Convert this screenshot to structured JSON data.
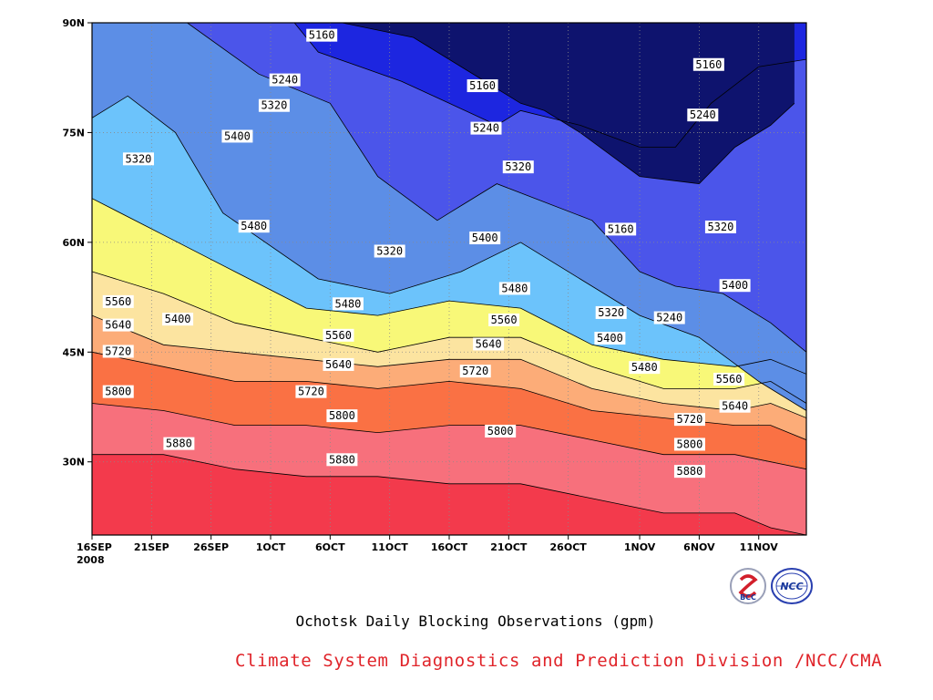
{
  "chart_data": {
    "type": "contour",
    "x_axis": {
      "ticks": [
        "16SEP",
        "21SEP",
        "26SEP",
        "1OCT",
        "6OCT",
        "11OCT",
        "16OCT",
        "21OCT",
        "26OCT",
        "1NOV",
        "6NOV",
        "11NOV"
      ],
      "tick_days": [
        0,
        5,
        10,
        15,
        20,
        25,
        30,
        35,
        40,
        46,
        51,
        56
      ],
      "year_label": "2008",
      "range_days": [
        0,
        60
      ]
    },
    "y_axis": {
      "ticks": [
        "90N",
        "75N",
        "60N",
        "45N",
        "30N"
      ],
      "tick_values": [
        90,
        75,
        60,
        45,
        30
      ],
      "range": [
        20,
        90
      ]
    },
    "grid": "dotted",
    "levels": [
      5160,
      5240,
      5320,
      5400,
      5480,
      5560,
      5640,
      5720,
      5800,
      5880
    ],
    "band_colors": [
      "#0e136e",
      "#1d26e0",
      "#4b55ea",
      "#5c8ee6",
      "#6cc3fb",
      "#f8f878",
      "#fce4a0",
      "#fcac78",
      "#fa7144",
      "#f7707c",
      "#f33a4c"
    ],
    "contours": [
      {
        "level": 5160,
        "points": [
          [
            0,
            90
          ],
          [
            21,
            90
          ],
          [
            27,
            88
          ],
          [
            36,
            79
          ],
          [
            38,
            78
          ],
          [
            41,
            75
          ],
          [
            46,
            69
          ],
          [
            51,
            68
          ],
          [
            54,
            73
          ],
          [
            57,
            76
          ],
          [
            59,
            79
          ]
        ]
      },
      {
        "level": 5240,
        "points": [
          [
            17,
            90
          ],
          [
            19,
            86
          ],
          [
            26,
            82
          ],
          [
            30,
            79
          ],
          [
            34,
            76
          ],
          [
            36,
            78
          ],
          [
            41,
            76
          ],
          [
            46,
            73
          ],
          [
            49,
            73
          ],
          [
            52,
            79
          ],
          [
            56,
            84
          ],
          [
            60,
            85
          ]
        ]
      },
      {
        "level": 5320,
        "points": [
          [
            8,
            90
          ],
          [
            14,
            83
          ],
          [
            20,
            79
          ],
          [
            24,
            69
          ],
          [
            29,
            63
          ],
          [
            30,
            64
          ],
          [
            34,
            68
          ],
          [
            42,
            63
          ],
          [
            46,
            56
          ],
          [
            49,
            54
          ],
          [
            53,
            53
          ],
          [
            57,
            49
          ],
          [
            60,
            45
          ]
        ]
      },
      {
        "level": 5400,
        "points": [
          [
            0,
            77
          ],
          [
            3,
            80
          ],
          [
            7,
            75
          ],
          [
            11,
            64
          ],
          [
            19,
            55
          ],
          [
            25,
            53
          ],
          [
            31,
            56
          ],
          [
            36,
            60
          ],
          [
            41,
            55
          ],
          [
            46,
            50
          ],
          [
            51,
            47
          ],
          [
            56,
            41
          ],
          [
            60,
            37
          ]
        ]
      },
      {
        "level": 5480,
        "points": [
          [
            0,
            66
          ],
          [
            6,
            61
          ],
          [
            12,
            56
          ],
          [
            18,
            51
          ],
          [
            24,
            50
          ],
          [
            30,
            52
          ],
          [
            36,
            51
          ],
          [
            42,
            46
          ],
          [
            48,
            44
          ],
          [
            54,
            43
          ],
          [
            57,
            44
          ],
          [
            60,
            42
          ]
        ]
      },
      {
        "level": 5560,
        "points": [
          [
            0,
            56
          ],
          [
            6,
            53
          ],
          [
            12,
            49
          ],
          [
            18,
            47
          ],
          [
            24,
            45
          ],
          [
            30,
            47
          ],
          [
            36,
            47
          ],
          [
            42,
            43
          ],
          [
            48,
            40
          ],
          [
            54,
            40
          ],
          [
            57,
            41
          ],
          [
            60,
            38
          ]
        ]
      },
      {
        "level": 5640,
        "points": [
          [
            0,
            50
          ],
          [
            6,
            46
          ],
          [
            12,
            45
          ],
          [
            18,
            44
          ],
          [
            24,
            43
          ],
          [
            30,
            44
          ],
          [
            36,
            44
          ],
          [
            42,
            40
          ],
          [
            48,
            38
          ],
          [
            54,
            37
          ],
          [
            57,
            38
          ],
          [
            60,
            36
          ]
        ]
      },
      {
        "level": 5720,
        "points": [
          [
            0,
            45
          ],
          [
            6,
            43
          ],
          [
            12,
            41
          ],
          [
            18,
            41
          ],
          [
            24,
            40
          ],
          [
            30,
            41
          ],
          [
            36,
            40
          ],
          [
            42,
            37
          ],
          [
            48,
            36
          ],
          [
            54,
            35
          ],
          [
            57,
            35
          ],
          [
            60,
            33
          ]
        ]
      },
      {
        "level": 5800,
        "points": [
          [
            0,
            38
          ],
          [
            6,
            37
          ],
          [
            12,
            35
          ],
          [
            18,
            35
          ],
          [
            24,
            34
          ],
          [
            30,
            35
          ],
          [
            36,
            35
          ],
          [
            42,
            33
          ],
          [
            48,
            31
          ],
          [
            54,
            31
          ],
          [
            57,
            30
          ],
          [
            60,
            29
          ]
        ]
      },
      {
        "level": 5880,
        "points": [
          [
            0,
            31
          ],
          [
            6,
            31
          ],
          [
            12,
            29
          ],
          [
            18,
            28
          ],
          [
            24,
            28
          ],
          [
            30,
            27
          ],
          [
            36,
            27
          ],
          [
            42,
            25
          ],
          [
            48,
            23
          ],
          [
            54,
            23
          ],
          [
            57,
            21
          ],
          [
            60,
            20
          ]
        ]
      }
    ],
    "contour_labels": [
      {
        "text": "5160",
        "day": 19.3,
        "lat": 88.3
      },
      {
        "text": "5160",
        "day": 32.8,
        "lat": 81.4
      },
      {
        "text": "5160",
        "day": 51.8,
        "lat": 84.3
      },
      {
        "text": "5160",
        "day": 44.4,
        "lat": 61.8
      },
      {
        "text": "5240",
        "day": 16.2,
        "lat": 82.2
      },
      {
        "text": "5240",
        "day": 33.1,
        "lat": 75.6
      },
      {
        "text": "5240",
        "day": 51.3,
        "lat": 77.4
      },
      {
        "text": "5240",
        "day": 48.5,
        "lat": 49.7
      },
      {
        "text": "5320",
        "day": 3.9,
        "lat": 71.4
      },
      {
        "text": "5320",
        "day": 15.3,
        "lat": 78.7
      },
      {
        "text": "5320",
        "day": 25.0,
        "lat": 58.8
      },
      {
        "text": "5320",
        "day": 35.8,
        "lat": 70.3
      },
      {
        "text": "5320",
        "day": 43.6,
        "lat": 50.4
      },
      {
        "text": "5320",
        "day": 52.8,
        "lat": 62.1
      },
      {
        "text": "5400",
        "day": 12.2,
        "lat": 74.5
      },
      {
        "text": "5400",
        "day": 7.2,
        "lat": 49.5
      },
      {
        "text": "5400",
        "day": 33.0,
        "lat": 60.6
      },
      {
        "text": "5400",
        "day": 43.5,
        "lat": 46.9
      },
      {
        "text": "5400",
        "day": 54.0,
        "lat": 54.1
      },
      {
        "text": "5480",
        "day": 13.6,
        "lat": 62.2
      },
      {
        "text": "5480",
        "day": 21.5,
        "lat": 51.6
      },
      {
        "text": "5480",
        "day": 35.5,
        "lat": 53.7
      },
      {
        "text": "5480",
        "day": 46.4,
        "lat": 42.9
      },
      {
        "text": "5560",
        "day": 2.2,
        "lat": 51.9
      },
      {
        "text": "5560",
        "day": 20.7,
        "lat": 47.3
      },
      {
        "text": "5560",
        "day": 34.6,
        "lat": 49.4
      },
      {
        "text": "5560",
        "day": 53.5,
        "lat": 41.3
      },
      {
        "text": "5640",
        "day": 2.2,
        "lat": 48.7
      },
      {
        "text": "5640",
        "day": 20.7,
        "lat": 43.3
      },
      {
        "text": "5640",
        "day": 33.3,
        "lat": 46.1
      },
      {
        "text": "5640",
        "day": 54.0,
        "lat": 37.6
      },
      {
        "text": "5720",
        "day": 2.2,
        "lat": 45.1
      },
      {
        "text": "5720",
        "day": 18.4,
        "lat": 39.6
      },
      {
        "text": "5720",
        "day": 32.2,
        "lat": 42.4
      },
      {
        "text": "5720",
        "day": 50.2,
        "lat": 35.8
      },
      {
        "text": "5800",
        "day": 2.2,
        "lat": 39.6
      },
      {
        "text": "5800",
        "day": 21.0,
        "lat": 36.3
      },
      {
        "text": "5800",
        "day": 34.3,
        "lat": 34.2
      },
      {
        "text": "5800",
        "day": 50.2,
        "lat": 32.4
      },
      {
        "text": "5880",
        "day": 7.3,
        "lat": 32.5
      },
      {
        "text": "5880",
        "day": 21.0,
        "lat": 30.3
      },
      {
        "text": "5880",
        "day": 50.2,
        "lat": 28.7
      }
    ]
  },
  "subtitle": "Ochotsk Daily Blocking Observations (gpm)",
  "credit": "Climate System Diagnostics and Prediction Division /NCC/CMA",
  "logos": {
    "bcc": {
      "text": "BCC",
      "color": "#1a3a9c"
    },
    "ncc": {
      "text": "NCC",
      "color": "#1a3a9c"
    }
  }
}
